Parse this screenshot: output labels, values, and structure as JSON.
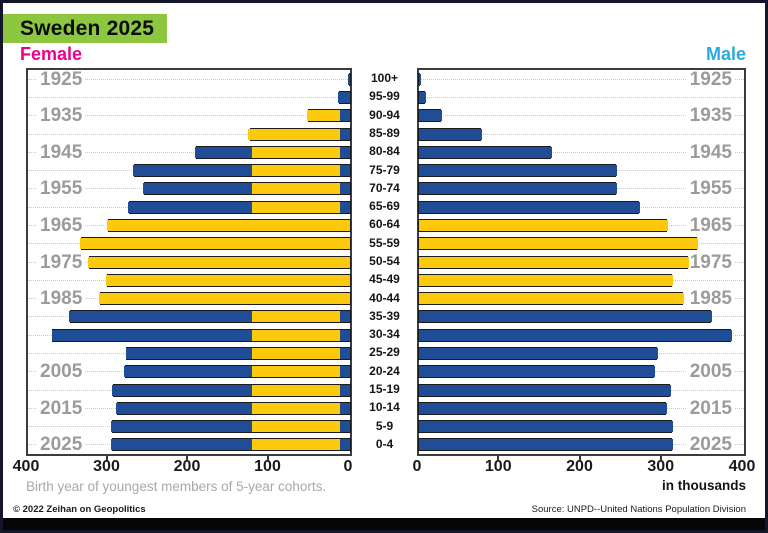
{
  "title": "Sweden 2025",
  "female_header": "Female",
  "male_header": "Male",
  "footnote": "Birth year of youngest members of 5-year cohorts.",
  "units_label": "in thousands",
  "copyright": "© 2022 Zeihan on Geopolitics",
  "source": "Source: UNPD--United Nations Population Division",
  "colors": {
    "title_bg": "#8dc63f",
    "female_header": "#ec008c",
    "male_header": "#29abe2",
    "bar_blue": "#1f4e97",
    "bar_yellow": "#fcc90d",
    "year_label": "#9b9b9b"
  },
  "axis": {
    "max": 400,
    "left_ticks": [
      400,
      300,
      200,
      100,
      0
    ],
    "right_ticks": [
      0,
      100,
      200,
      300,
      400
    ]
  },
  "chart_data": {
    "type": "bar",
    "subtype": "population-pyramid",
    "units": "thousands",
    "age_groups": [
      "100+",
      "95-99",
      "90-94",
      "85-89",
      "80-84",
      "75-79",
      "70-74",
      "65-69",
      "60-64",
      "55-59",
      "50-54",
      "45-49",
      "40-44",
      "35-39",
      "30-34",
      "25-29",
      "20-24",
      "15-19",
      "10-14",
      "5-9",
      "0-4"
    ],
    "birth_year_labels": [
      "1925",
      "",
      "1935",
      "",
      "1945",
      "",
      "1955",
      "",
      "1965",
      "",
      "1975",
      "",
      "1985",
      "",
      "",
      "",
      "2005",
      "",
      "2015",
      "",
      "2025"
    ],
    "series": [
      {
        "name": "Female",
        "totals": [
          3,
          15,
          53,
          126,
          193,
          270,
          257,
          276,
          302,
          335,
          326,
          303,
          312,
          349,
          371,
          279,
          281,
          296,
          291,
          297,
          297
        ],
        "segments": [
          [
            [
              0,
              3,
              "blue"
            ]
          ],
          [
            [
              0,
              15,
              "blue"
            ]
          ],
          [
            [
              0,
              12,
              "blue"
            ],
            [
              12,
              53,
              "yellow"
            ]
          ],
          [
            [
              0,
              12,
              "blue"
            ],
            [
              12,
              126,
              "yellow"
            ]
          ],
          [
            [
              0,
              12,
              "blue"
            ],
            [
              12,
              122,
              "yellow"
            ],
            [
              122,
              193,
              "blue"
            ]
          ],
          [
            [
              0,
              12,
              "blue"
            ],
            [
              12,
              122,
              "yellow"
            ],
            [
              122,
              270,
              "blue"
            ]
          ],
          [
            [
              0,
              12,
              "blue"
            ],
            [
              12,
              122,
              "yellow"
            ],
            [
              122,
              257,
              "blue"
            ]
          ],
          [
            [
              0,
              12,
              "blue"
            ],
            [
              12,
              122,
              "yellow"
            ],
            [
              122,
              276,
              "blue"
            ]
          ],
          [
            [
              0,
              302,
              "yellow"
            ]
          ],
          [
            [
              0,
              335,
              "yellow"
            ]
          ],
          [
            [
              0,
              326,
              "yellow"
            ]
          ],
          [
            [
              0,
              303,
              "yellow"
            ]
          ],
          [
            [
              0,
              312,
              "yellow"
            ]
          ],
          [
            [
              0,
              12,
              "blue"
            ],
            [
              12,
              122,
              "yellow"
            ],
            [
              122,
              349,
              "blue"
            ]
          ],
          [
            [
              0,
              12,
              "blue"
            ],
            [
              12,
              122,
              "yellow"
            ],
            [
              122,
              371,
              "blue"
            ]
          ],
          [
            [
              0,
              12,
              "blue"
            ],
            [
              12,
              122,
              "yellow"
            ],
            [
              122,
              279,
              "blue"
            ]
          ],
          [
            [
              0,
              12,
              "blue"
            ],
            [
              12,
              122,
              "yellow"
            ],
            [
              122,
              281,
              "blue"
            ]
          ],
          [
            [
              0,
              12,
              "blue"
            ],
            [
              12,
              122,
              "yellow"
            ],
            [
              122,
              296,
              "blue"
            ]
          ],
          [
            [
              0,
              12,
              "blue"
            ],
            [
              12,
              122,
              "yellow"
            ],
            [
              122,
              291,
              "blue"
            ]
          ],
          [
            [
              0,
              12,
              "blue"
            ],
            [
              12,
              122,
              "yellow"
            ],
            [
              122,
              297,
              "blue"
            ]
          ],
          [
            [
              0,
              12,
              "blue"
            ],
            [
              12,
              122,
              "yellow"
            ],
            [
              122,
              297,
              "blue"
            ]
          ]
        ]
      },
      {
        "name": "Male",
        "totals": [
          2,
          8,
          28,
          77,
          164,
          244,
          244,
          272,
          306,
          343,
          332,
          312,
          326,
          360,
          385,
          294,
          291,
          310,
          305,
          312,
          313
        ],
        "segments": [
          [
            [
              0,
              2,
              "blue"
            ]
          ],
          [
            [
              0,
              8,
              "blue"
            ]
          ],
          [
            [
              0,
              28,
              "blue"
            ]
          ],
          [
            [
              0,
              77,
              "blue"
            ]
          ],
          [
            [
              0,
              164,
              "blue"
            ]
          ],
          [
            [
              0,
              244,
              "blue"
            ]
          ],
          [
            [
              0,
              244,
              "blue"
            ]
          ],
          [
            [
              0,
              272,
              "blue"
            ]
          ],
          [
            [
              0,
              306,
              "yellow"
            ]
          ],
          [
            [
              0,
              343,
              "yellow"
            ]
          ],
          [
            [
              0,
              332,
              "yellow"
            ]
          ],
          [
            [
              0,
              312,
              "yellow"
            ]
          ],
          [
            [
              0,
              326,
              "yellow"
            ]
          ],
          [
            [
              0,
              360,
              "blue"
            ]
          ],
          [
            [
              0,
              385,
              "blue"
            ]
          ],
          [
            [
              0,
              294,
              "blue"
            ]
          ],
          [
            [
              0,
              291,
              "blue"
            ]
          ],
          [
            [
              0,
              310,
              "blue"
            ]
          ],
          [
            [
              0,
              305,
              "blue"
            ]
          ],
          [
            [
              0,
              312,
              "blue"
            ]
          ],
          [
            [
              0,
              313,
              "blue"
            ]
          ]
        ]
      }
    ]
  }
}
